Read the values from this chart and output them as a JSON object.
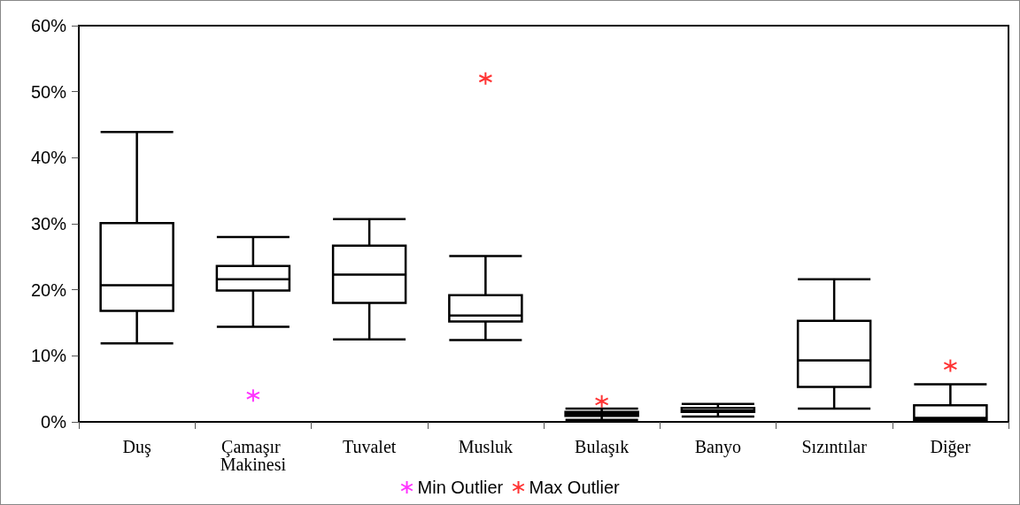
{
  "chart_data": {
    "type": "box",
    "categories": [
      "Duş",
      "Çamaşır Makinesi",
      "Tuvalet",
      "Musluk",
      "Bulaşık",
      "Banyo",
      "Sızıntılar",
      "Diğer"
    ],
    "boxes": [
      {
        "low": 11.9,
        "q1": 16.8,
        "median": 20.7,
        "q3": 30.1,
        "high": 43.9
      },
      {
        "low": 14.4,
        "q1": 19.9,
        "median": 21.6,
        "q3": 23.6,
        "high": 28.0
      },
      {
        "low": 12.5,
        "q1": 18.0,
        "median": 22.3,
        "q3": 26.7,
        "high": 30.7
      },
      {
        "low": 12.4,
        "q1": 15.2,
        "median": 16.1,
        "q3": 19.2,
        "high": 25.1
      },
      {
        "low": 0.3,
        "q1": 0.9,
        "median": 1.2,
        "q3": 1.5,
        "high": 2.0
      },
      {
        "low": 0.8,
        "q1": 1.5,
        "median": 1.7,
        "q3": 2.1,
        "high": 2.7
      },
      {
        "low": 2.0,
        "q1": 5.3,
        "median": 9.3,
        "q3": 15.3,
        "high": 21.6
      },
      {
        "low": 0.3,
        "q1": 0.3,
        "median": 0.6,
        "q3": 2.5,
        "high": 5.7
      }
    ],
    "series": [
      {
        "type": "scatter",
        "name": "Min Outlier",
        "color": "#ff00ff",
        "x": [
          "Çamaşır Makinesi"
        ],
        "values": [
          4.0
        ]
      },
      {
        "type": "scatter",
        "name": "Max Outlier",
        "color": "#ff0000",
        "x": [
          "Musluk",
          "Bulaşık",
          "Diğer"
        ],
        "values": [
          52.0,
          3.1,
          8.5
        ]
      }
    ],
    "ylim": [
      0,
      60
    ],
    "yticks": [
      {
        "value": 0,
        "label": "0%"
      },
      {
        "value": 10,
        "label": "10%"
      },
      {
        "value": 20,
        "label": "20%"
      },
      {
        "value": 30,
        "label": "30%"
      },
      {
        "value": 40,
        "label": "40%"
      },
      {
        "value": 50,
        "label": "50%"
      },
      {
        "value": 60,
        "label": "60%"
      }
    ],
    "grid": false,
    "legend": "bottom",
    "marker": "cross"
  }
}
